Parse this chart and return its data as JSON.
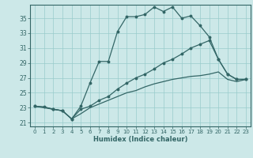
{
  "xlabel": "Humidex (Indice chaleur)",
  "background_color": "#cce8e8",
  "grid_color": "#99cccc",
  "line_color": "#336666",
  "xlim": [
    -0.5,
    23.5
  ],
  "ylim": [
    20.5,
    36.8
  ],
  "xticks": [
    0,
    1,
    2,
    3,
    4,
    5,
    6,
    7,
    8,
    9,
    10,
    11,
    12,
    13,
    14,
    15,
    16,
    17,
    18,
    19,
    20,
    21,
    22,
    23
  ],
  "yticks": [
    21,
    23,
    25,
    27,
    29,
    31,
    33,
    35
  ],
  "series1_x": [
    0,
    1,
    2,
    3,
    4,
    5,
    6,
    7,
    8,
    9,
    10,
    11,
    12,
    13,
    14,
    15,
    16,
    17,
    18,
    19,
    20,
    21,
    22,
    23
  ],
  "series1_y": [
    23.2,
    23.1,
    22.8,
    22.6,
    21.5,
    23.2,
    26.3,
    29.2,
    29.2,
    33.2,
    35.2,
    35.2,
    35.5,
    36.5,
    35.9,
    36.5,
    35.0,
    35.3,
    34.0,
    32.5,
    29.5,
    27.5,
    26.8,
    26.8
  ],
  "series2_x": [
    0,
    2,
    3,
    4,
    5,
    6,
    7,
    8,
    9,
    10,
    11,
    12,
    13,
    14,
    15,
    16,
    17,
    18,
    19,
    20,
    21,
    22,
    23
  ],
  "series2_y": [
    23.2,
    22.8,
    22.6,
    21.5,
    22.8,
    23.2,
    24.0,
    24.5,
    25.5,
    26.3,
    27.0,
    27.5,
    28.2,
    29.0,
    29.5,
    30.2,
    31.0,
    31.5,
    32.0,
    29.5,
    27.5,
    26.8,
    26.8
  ],
  "series3_x": [
    0,
    1,
    2,
    3,
    4,
    5,
    6,
    7,
    8,
    9,
    10,
    11,
    12,
    13,
    14,
    15,
    16,
    17,
    18,
    19,
    20,
    21,
    22,
    23
  ],
  "series3_y": [
    23.2,
    23.1,
    22.8,
    22.6,
    21.5,
    22.2,
    23.0,
    23.5,
    24.0,
    24.5,
    25.0,
    25.3,
    25.8,
    26.2,
    26.5,
    26.8,
    27.0,
    27.2,
    27.3,
    27.5,
    27.8,
    26.8,
    26.5,
    26.8
  ]
}
